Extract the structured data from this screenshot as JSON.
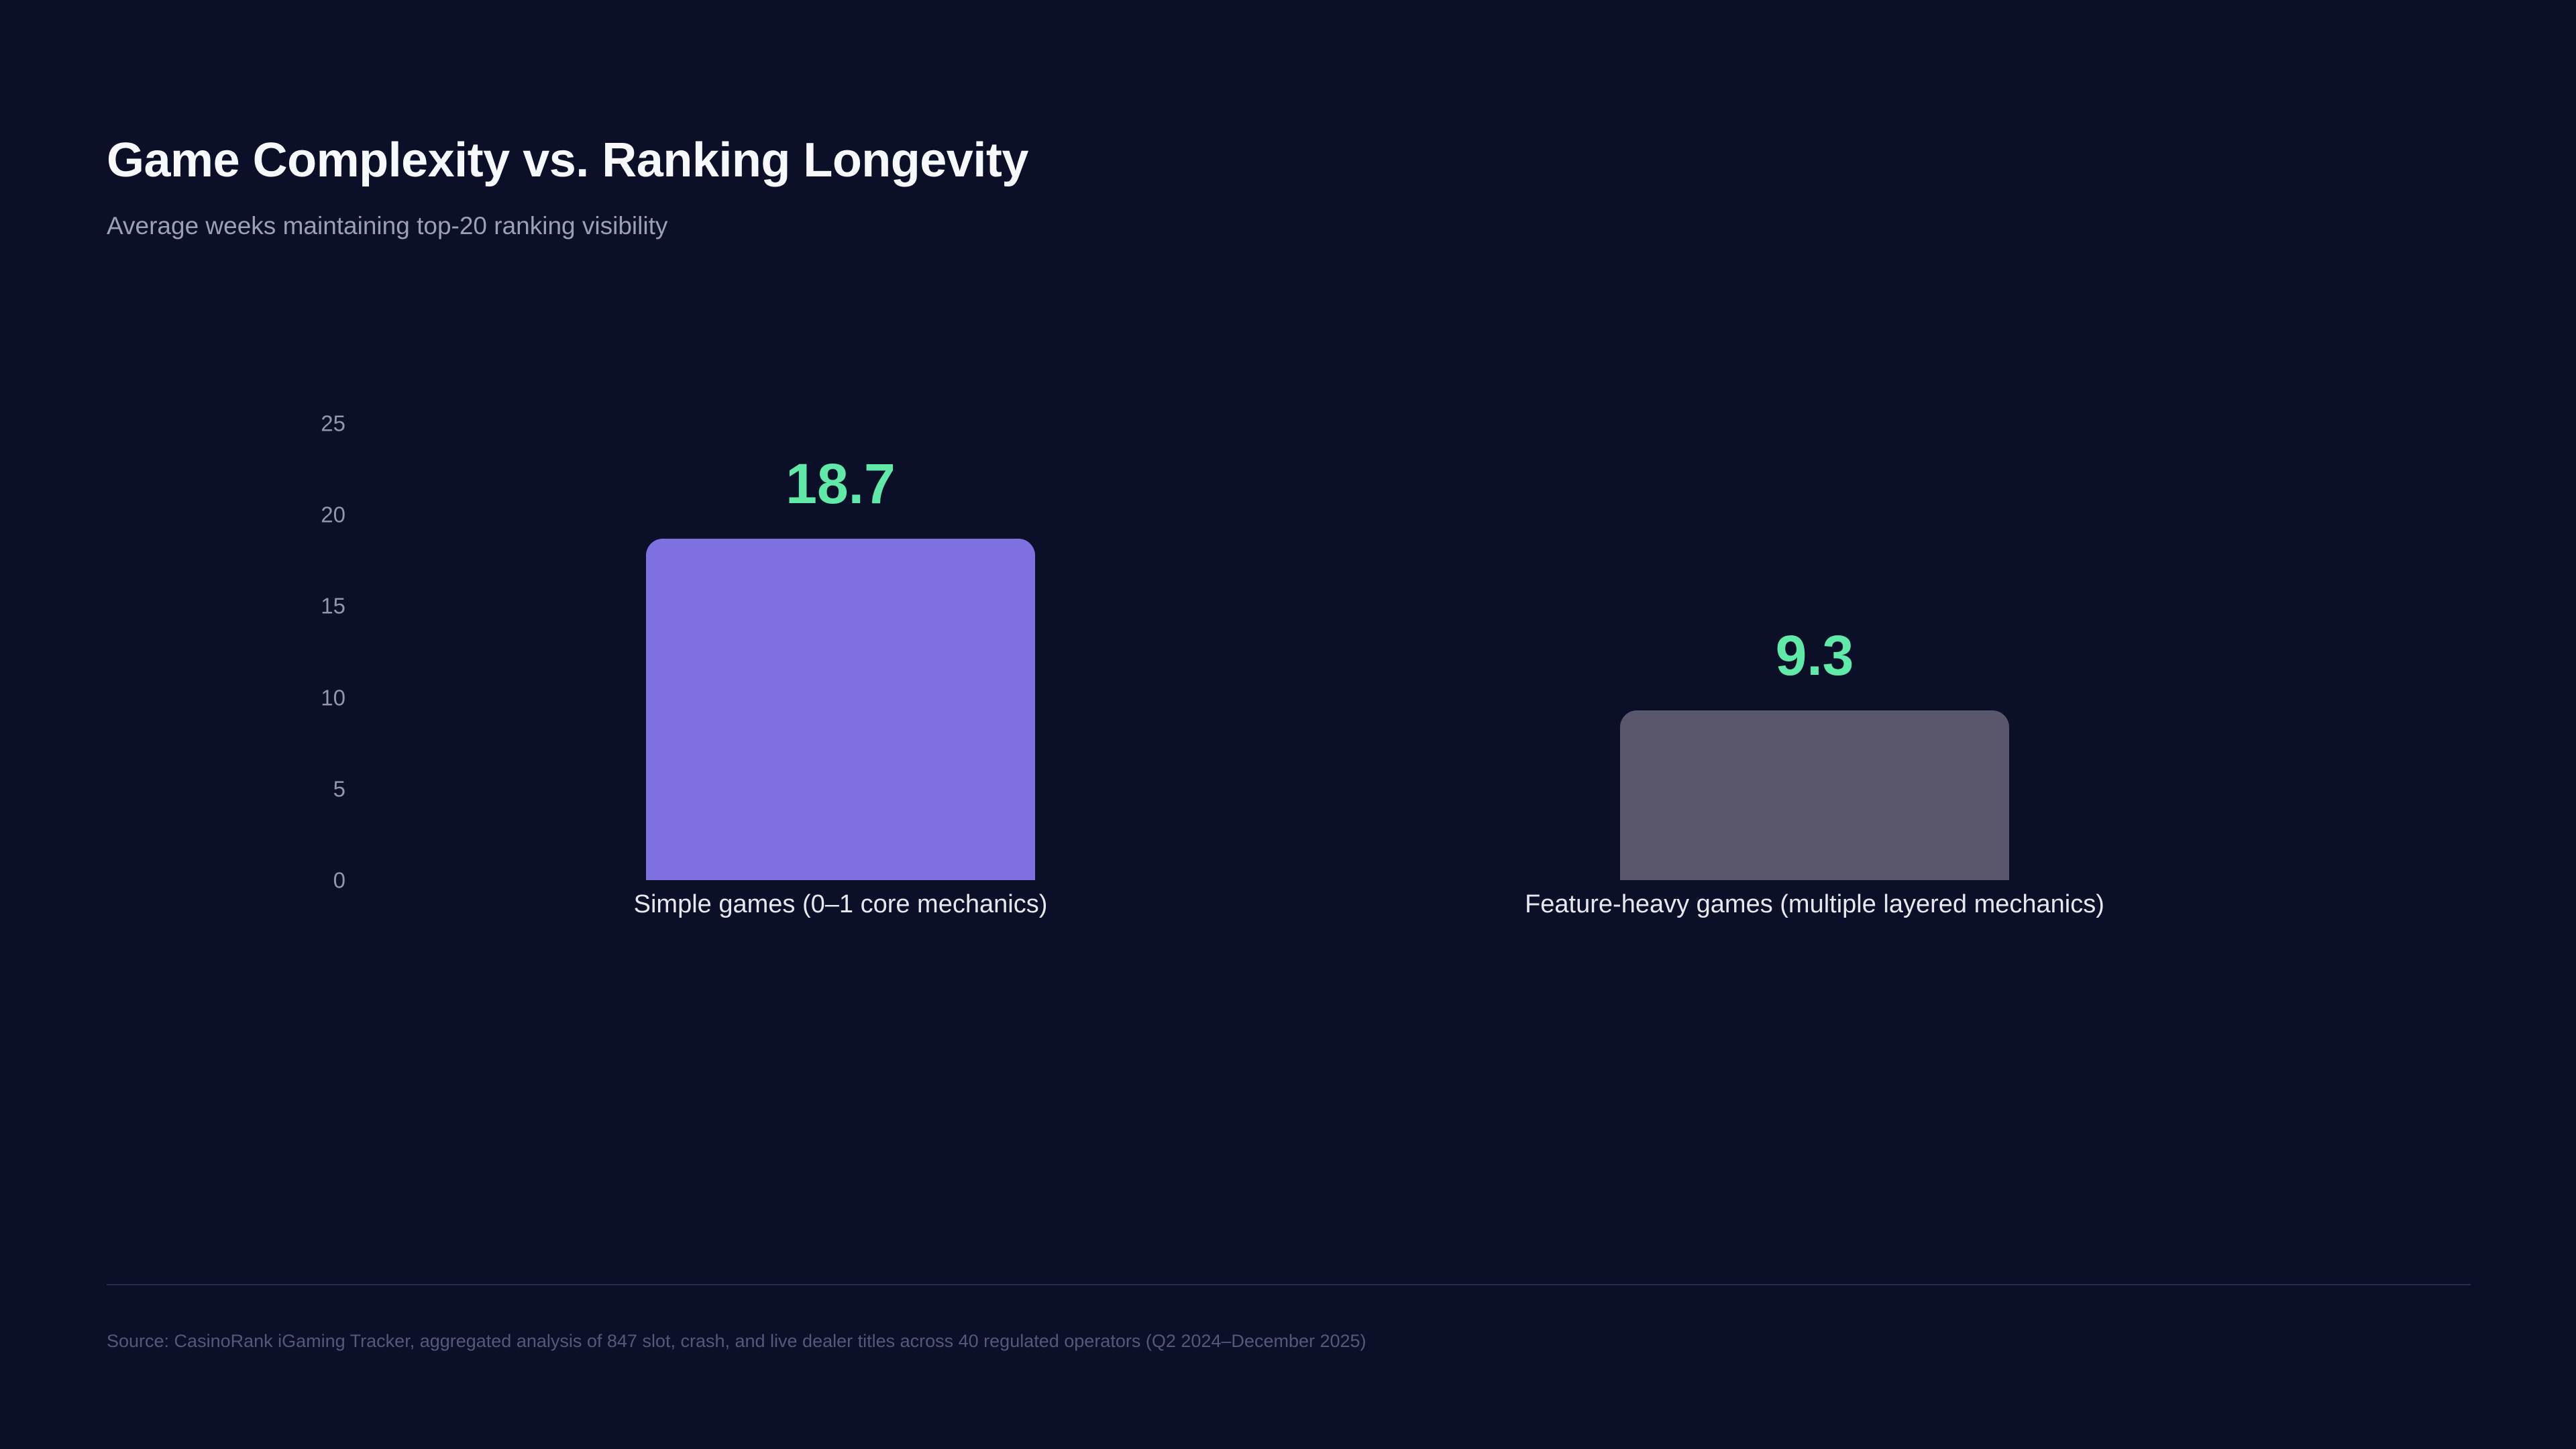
{
  "page": {
    "background": "#0b0f28"
  },
  "header": {
    "title": "Game Complexity vs. Ranking Longevity",
    "subtitle": "Average weeks maintaining top-20 ranking visibility"
  },
  "chart_data": {
    "type": "bar",
    "title": "Game Complexity vs. Ranking Longevity",
    "subtitle": "Average weeks maintaining top-20 ranking visibility",
    "categories": [
      "Simple games (0–1 core mechanics)",
      "Feature-heavy games (multiple layered mechanics)"
    ],
    "values": [
      18.7,
      9.3
    ],
    "value_labels": [
      "18.7",
      "9.3"
    ],
    "bar_colors": [
      "#7f70e0",
      "#5a576c"
    ],
    "value_label_color": "#5feaa8",
    "xlabel": "",
    "ylabel": "",
    "ylim": [
      0,
      25
    ],
    "yticks": [
      0,
      5,
      10,
      15,
      20,
      25
    ],
    "grid": false,
    "legend": false
  },
  "footer": {
    "source": "Source: CasinoRank iGaming Tracker, aggregated analysis of 847 slot, crash, and live dealer titles across 40 regulated operators (Q2 2024–December 2025)"
  }
}
